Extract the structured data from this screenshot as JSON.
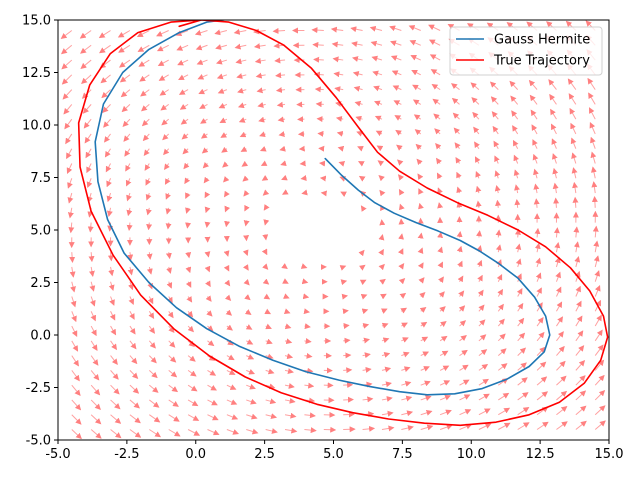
{
  "chart_data": {
    "type": "line",
    "title": "",
    "xlabel": "",
    "ylabel": "",
    "xlim": [
      -5,
      15
    ],
    "ylim": [
      -5,
      15
    ],
    "xticks": [
      "-5.0",
      "-2.5",
      "0.0",
      "2.5",
      "5.0",
      "7.5",
      "10.0",
      "12.5",
      "15.0"
    ],
    "yticks": [
      "-5.0",
      "-2.5",
      "0.0",
      "2.5",
      "5.0",
      "7.5",
      "10.0",
      "12.5",
      "15.0"
    ],
    "grid": false,
    "legend_position": "top-right",
    "quiver": {
      "color": "#ff8080",
      "description_note": "vector field (rotational flow) drawn as light red arrows on a regular grid",
      "x_range": [
        -4.5,
        14.5
      ],
      "y_range": [
        -4.5,
        14.5
      ],
      "grid_count": 28,
      "center": [
        4.5,
        5.0
      ]
    },
    "series": [
      {
        "name": "Gauss Hermite",
        "color": "#1f77b4",
        "points": [
          [
            4.7,
            8.4
          ],
          [
            5.3,
            7.6
          ],
          [
            5.9,
            6.9
          ],
          [
            6.5,
            6.3
          ],
          [
            7.2,
            5.8
          ],
          [
            8.0,
            5.35
          ],
          [
            8.8,
            4.95
          ],
          [
            9.6,
            4.5
          ],
          [
            10.3,
            4.0
          ],
          [
            11.0,
            3.4
          ],
          [
            11.7,
            2.7
          ],
          [
            12.3,
            1.8
          ],
          [
            12.7,
            0.9
          ],
          [
            12.85,
            0.0
          ],
          [
            12.65,
            -0.8
          ],
          [
            12.1,
            -1.5
          ],
          [
            11.3,
            -2.1
          ],
          [
            10.4,
            -2.55
          ],
          [
            9.4,
            -2.8
          ],
          [
            8.4,
            -2.85
          ],
          [
            7.4,
            -2.7
          ],
          [
            6.3,
            -2.45
          ],
          [
            5.2,
            -2.15
          ],
          [
            4.0,
            -1.75
          ],
          [
            2.8,
            -1.2
          ],
          [
            1.6,
            -0.55
          ],
          [
            0.4,
            0.3
          ],
          [
            -0.7,
            1.3
          ],
          [
            -1.7,
            2.5
          ],
          [
            -2.6,
            3.9
          ],
          [
            -3.2,
            5.5
          ],
          [
            -3.55,
            7.3
          ],
          [
            -3.65,
            9.2
          ],
          [
            -3.35,
            11.0
          ],
          [
            -2.65,
            12.5
          ],
          [
            -1.7,
            13.6
          ],
          [
            -0.6,
            14.4
          ],
          [
            0.4,
            14.9
          ],
          [
            1.0,
            15.0
          ]
        ]
      },
      {
        "name": "True Trajectory",
        "color": "#ff0000",
        "points": [
          [
            -0.6,
            14.7
          ],
          [
            0.2,
            15.0
          ],
          [
            1.2,
            14.9
          ],
          [
            2.2,
            14.5
          ],
          [
            3.2,
            13.8
          ],
          [
            4.2,
            12.7
          ],
          [
            5.1,
            11.3
          ],
          [
            5.9,
            9.9
          ],
          [
            6.6,
            8.7
          ],
          [
            7.4,
            7.8
          ],
          [
            8.4,
            7.0
          ],
          [
            9.5,
            6.3
          ],
          [
            10.6,
            5.7
          ],
          [
            11.7,
            5.0
          ],
          [
            12.7,
            4.2
          ],
          [
            13.6,
            3.2
          ],
          [
            14.3,
            2.1
          ],
          [
            14.8,
            0.9
          ],
          [
            14.95,
            -0.1
          ],
          [
            14.7,
            -1.2
          ],
          [
            14.1,
            -2.3
          ],
          [
            13.2,
            -3.2
          ],
          [
            12.1,
            -3.8
          ],
          [
            10.9,
            -4.15
          ],
          [
            9.6,
            -4.3
          ],
          [
            8.3,
            -4.2
          ],
          [
            7.0,
            -4.0
          ],
          [
            5.7,
            -3.7
          ],
          [
            4.4,
            -3.3
          ],
          [
            3.1,
            -2.75
          ],
          [
            1.8,
            -2.0
          ],
          [
            0.5,
            -1.0
          ],
          [
            -0.8,
            0.3
          ],
          [
            -2.0,
            1.9
          ],
          [
            -3.0,
            3.8
          ],
          [
            -3.8,
            5.9
          ],
          [
            -4.2,
            8.0
          ],
          [
            -4.25,
            10.1
          ],
          [
            -3.85,
            11.9
          ],
          [
            -3.1,
            13.4
          ],
          [
            -2.1,
            14.4
          ],
          [
            -0.9,
            14.9
          ],
          [
            0.2,
            15.0
          ]
        ]
      }
    ]
  }
}
